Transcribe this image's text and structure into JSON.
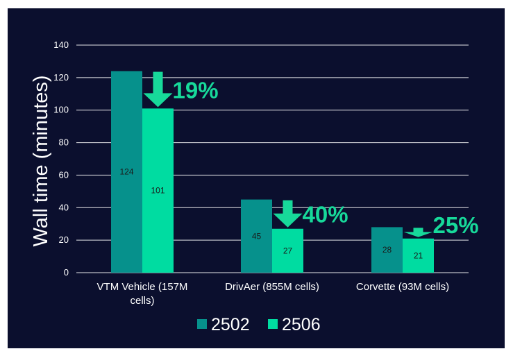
{
  "chart_data": {
    "type": "bar",
    "categories": [
      "VTM Vehicle (157M cells)",
      "DrivAer (855M cells)",
      "Corvette (93M cells)"
    ],
    "category_lines": [
      [
        "VTM Vehicle (157M",
        "cells)"
      ],
      [
        "DrivAer (855M cells)"
      ],
      [
        "Corvette (93M cells)"
      ]
    ],
    "series": [
      {
        "name": "2502",
        "values": [
          124,
          45,
          28
        ],
        "color": "#06918c"
      },
      {
        "name": "2506",
        "values": [
          101,
          27,
          21
        ],
        "color": "#00dca1"
      }
    ],
    "data_labels": [
      [
        "124",
        "45",
        "28"
      ],
      [
        "101",
        "27",
        "21"
      ]
    ],
    "reductions": [
      "19%",
      "40%",
      "25%"
    ],
    "reduction_color": "#17d99a",
    "title": "",
    "xlabel": "",
    "ylabel": "Wall time (minutes)",
    "ylim": [
      0,
      140
    ],
    "yticks": [
      0,
      20,
      40,
      60,
      80,
      100,
      120,
      140
    ],
    "grid": true,
    "legend_position": "bottom",
    "background": "#0b0f2e"
  }
}
